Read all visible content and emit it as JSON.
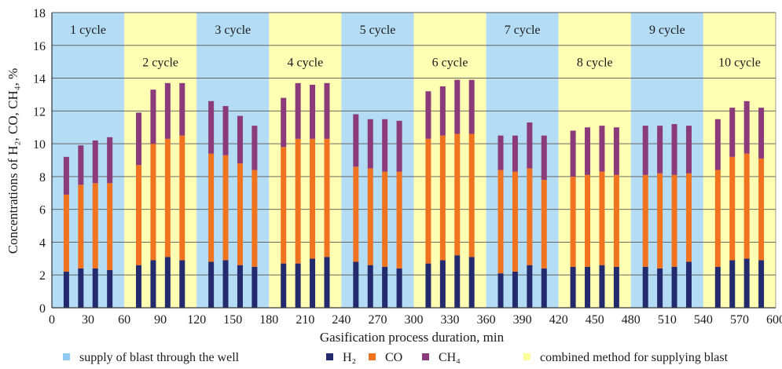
{
  "chart_data": {
    "type": "bar",
    "stacked": true,
    "xlabel": "Gasification process duration, min",
    "ylabel": "Concentrations of H₂, CO, CH₄, %",
    "ylim": [
      0,
      18
    ],
    "xlim": [
      0,
      600
    ],
    "x_ticks": [
      "0",
      "30",
      "60",
      "90",
      "120",
      "150",
      "180",
      "210",
      "240",
      "270",
      "300",
      "330",
      "360",
      "390",
      "420",
      "450",
      "480",
      "510",
      "540",
      "570",
      "600"
    ],
    "y_ticks": [
      "0",
      "2",
      "4",
      "6",
      "8",
      "10",
      "12",
      "14",
      "16",
      "18"
    ],
    "grid": "horizontal",
    "x": [
      12,
      24,
      36,
      48,
      72,
      84,
      96,
      108,
      132,
      144,
      156,
      168,
      192,
      204,
      216,
      228,
      252,
      264,
      276,
      288,
      312,
      324,
      336,
      348,
      372,
      384,
      396,
      408,
      432,
      444,
      456,
      468,
      492,
      504,
      516,
      528,
      552,
      564,
      576,
      588
    ],
    "series": [
      {
        "name": "H₂",
        "color": "#232a6e",
        "values": [
          2.2,
          2.4,
          2.4,
          2.3,
          2.6,
          2.9,
          3.1,
          2.9,
          2.8,
          2.9,
          2.6,
          2.5,
          2.7,
          2.7,
          3.0,
          3.1,
          2.8,
          2.6,
          2.5,
          2.4,
          2.7,
          2.9,
          3.2,
          3.1,
          2.1,
          2.2,
          2.6,
          2.4,
          2.5,
          2.5,
          2.6,
          2.5,
          2.5,
          2.4,
          2.5,
          2.8,
          2.5,
          2.9,
          3.0,
          2.9
        ]
      },
      {
        "name": "CO",
        "color": "#f07320",
        "values": [
          4.7,
          5.1,
          5.2,
          5.3,
          6.1,
          7.1,
          7.2,
          7.6,
          6.6,
          6.4,
          6.2,
          5.9,
          7.1,
          7.6,
          7.3,
          7.2,
          5.8,
          5.9,
          5.8,
          5.9,
          7.6,
          7.6,
          7.4,
          7.5,
          6.3,
          6.1,
          5.9,
          5.4,
          5.5,
          5.6,
          5.7,
          5.6,
          5.6,
          5.8,
          5.6,
          5.4,
          5.9,
          6.3,
          6.4,
          6.2
        ]
      },
      {
        "name": "CH₄",
        "color": "#8b3a7a",
        "values": [
          2.3,
          2.4,
          2.6,
          2.8,
          3.2,
          3.3,
          3.4,
          3.2,
          3.2,
          3.0,
          2.9,
          2.7,
          3.0,
          3.4,
          3.3,
          3.4,
          3.2,
          3.0,
          3.2,
          3.1,
          2.9,
          3.0,
          3.3,
          3.3,
          2.1,
          2.2,
          2.8,
          2.7,
          2.8,
          2.9,
          2.8,
          2.9,
          3.0,
          2.9,
          3.1,
          2.9,
          3.1,
          3.0,
          3.2,
          3.1
        ]
      }
    ],
    "cycles": [
      {
        "label": "1 cycle",
        "start": 0,
        "end": 60,
        "mode": "well"
      },
      {
        "label": "2 cycle",
        "start": 60,
        "end": 120,
        "mode": "combined"
      },
      {
        "label": "3 cycle",
        "start": 120,
        "end": 180,
        "mode": "well"
      },
      {
        "label": "4 cycle",
        "start": 180,
        "end": 240,
        "mode": "combined"
      },
      {
        "label": "5 cycle",
        "start": 240,
        "end": 300,
        "mode": "well"
      },
      {
        "label": "6 cycle",
        "start": 300,
        "end": 360,
        "mode": "combined"
      },
      {
        "label": "7 cycle",
        "start": 360,
        "end": 420,
        "mode": "well"
      },
      {
        "label": "8 cycle",
        "start": 420,
        "end": 480,
        "mode": "combined"
      },
      {
        "label": "9 cycle",
        "start": 480,
        "end": 540,
        "mode": "well"
      },
      {
        "label": "10 cycle",
        "start": 540,
        "end": 600,
        "mode": "combined"
      }
    ],
    "region_colors": {
      "well": "#b4dcf5",
      "combined": "#ffffb4"
    },
    "legend": {
      "placement": "bottom",
      "items": [
        {
          "key": "well",
          "label": "supply of blast through the well",
          "color": "#8fc9f0"
        },
        {
          "key": "h2",
          "label": "H₂",
          "color": "#232a6e"
        },
        {
          "key": "co",
          "label": "CO",
          "color": "#f07320"
        },
        {
          "key": "ch4",
          "label": "CH₄",
          "color": "#8b3a7a"
        },
        {
          "key": "combined",
          "label": "combined method for supplying blast",
          "color": "#ffff99"
        }
      ]
    }
  }
}
